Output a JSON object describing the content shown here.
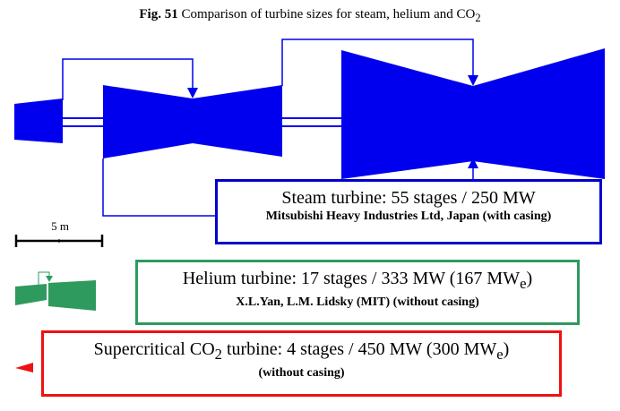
{
  "caption": {
    "fig_label": "Fig. 51",
    "text_before": "Comparison of turbine sizes for steam, helium and CO",
    "subscript": "2"
  },
  "scale": {
    "label": "5 m"
  },
  "steam": {
    "color": "#0000ee",
    "border_color": "#0000cc",
    "title": "Steam turbine: 55 stages / 250 MW",
    "source": "Mitsubishi Heavy Industries Ltd, Japan (with casing)"
  },
  "helium": {
    "color": "#2e9a5e",
    "title_before": "Helium turbine: 17 stages / 333 MW (167 MW",
    "title_sub": "e",
    "title_after": ")",
    "source": "X.L.Yan, L.M. Lidsky (MIT) (without casing)"
  },
  "co2": {
    "color": "#ee1111",
    "title_before": "Supercritical CO",
    "title_sub1": "2",
    "title_mid": " turbine: 4 stages / 450 MW (300 MW",
    "title_sub2": "e",
    "title_after": ")",
    "source": "(without casing)"
  }
}
